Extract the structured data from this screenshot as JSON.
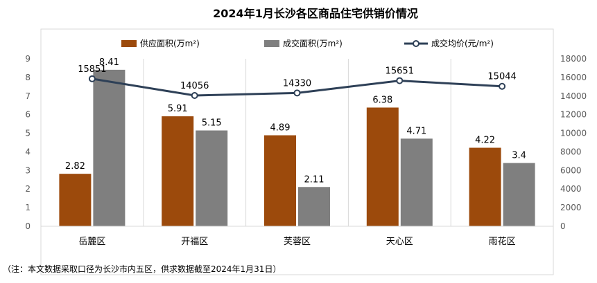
{
  "chart_data": {
    "type": "bar",
    "title": "2024年1月长沙各区商品住宅供销价情况",
    "categories": [
      "岳麓区",
      "开福区",
      "芙蓉区",
      "天心区",
      "雨花区"
    ],
    "series": [
      {
        "name": "供应面积(万m²)",
        "type": "bar",
        "axis": "left",
        "color": "#9c4a0c",
        "values": [
          2.82,
          5.91,
          4.89,
          6.38,
          4.22
        ],
        "labels": [
          "2.82",
          "5.91",
          "4.89",
          "6.38",
          "4.22"
        ]
      },
      {
        "name": "成交面积(万m²)",
        "type": "bar",
        "axis": "left",
        "color": "#7f7f7f",
        "values": [
          8.41,
          5.15,
          2.11,
          4.71,
          3.4
        ],
        "labels": [
          "8.41",
          "5.15",
          "2.11",
          "4.71",
          "3.4"
        ]
      },
      {
        "name": "成交均价(元/m²)",
        "type": "line",
        "axis": "right",
        "color": "#2e4057",
        "values": [
          15851,
          14056,
          14330,
          15651,
          15044
        ],
        "labels": [
          "15851",
          "14056",
          "14330",
          "15651",
          "15044"
        ]
      }
    ],
    "ylim_left": [
      0,
      9
    ],
    "yticks_left": [
      "0",
      "1",
      "2",
      "3",
      "4",
      "5",
      "6",
      "7",
      "8",
      "9"
    ],
    "ylim_right": [
      0,
      18000
    ],
    "yticks_right": [
      "0",
      "2000",
      "4000",
      "6000",
      "8000",
      "10000",
      "12000",
      "14000",
      "16000",
      "18000"
    ],
    "legend_position": "top",
    "grid": "vertical-category-separators"
  },
  "note": "（注：本文数据采取口径为长沙市内五区，供求数据截至2024年1月31日）"
}
